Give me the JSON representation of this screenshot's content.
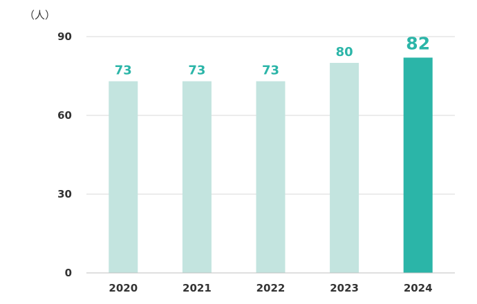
{
  "chart_data": {
    "type": "bar",
    "unit_label": "（人）",
    "categories": [
      "2020",
      "2021",
      "2022",
      "2023",
      "2024"
    ],
    "values": [
      73,
      73,
      73,
      80,
      82
    ],
    "data_labels": [
      "73",
      "73",
      "73",
      "80",
      "82"
    ],
    "ylim": [
      0,
      90
    ],
    "yticks": [
      0,
      30,
      60,
      90
    ],
    "grid": true,
    "highlight_index": 4,
    "colors": {
      "bar": "#c3e4df",
      "bar_highlight": "#2bb5a8",
      "label": "#2bb5a8",
      "grid": "#d9d9d9",
      "axis": "#bfbfbf",
      "text": "#333333"
    }
  }
}
